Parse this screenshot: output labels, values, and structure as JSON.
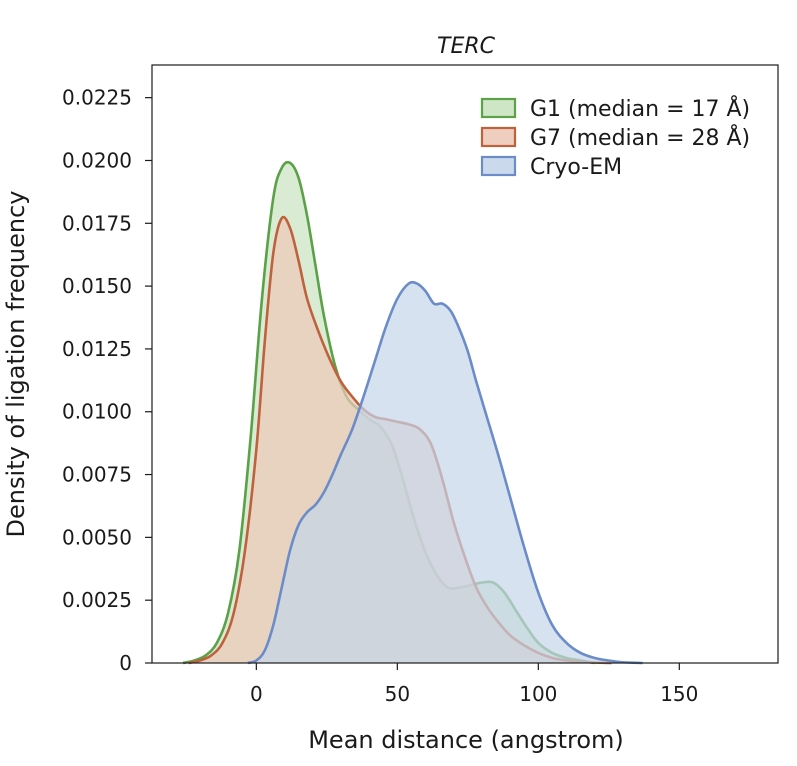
{
  "chart_data": {
    "type": "area",
    "title": "TERC",
    "xlabel": "Mean distance (angstrom)",
    "ylabel": "Density of ligation frequency",
    "xlim": [
      -37,
      185
    ],
    "ylim": [
      0,
      0.0238
    ],
    "xticks": [
      0,
      50,
      100,
      150
    ],
    "xtick_labels": [
      "0",
      "50",
      "100",
      "150"
    ],
    "yticks": [
      0,
      0.0025,
      0.005,
      0.0075,
      0.01,
      0.0125,
      0.015,
      0.0175,
      0.02,
      0.0225
    ],
    "ytick_labels": [
      "0",
      "0.0025",
      "0.0050",
      "0.0075",
      "0.0100",
      "0.0125",
      "0.0150",
      "0.0175",
      "0.0200",
      "0.0225"
    ],
    "grid": false,
    "legend_position": "top-right",
    "series": [
      {
        "name": "G1 (median = 17 Å)",
        "color": "#5aa147",
        "fill": "#c9e3c0",
        "x": [
          -26,
          -22,
          -18,
          -14,
          -10,
          -6,
          -2,
          2,
          6,
          9,
          12,
          15,
          18,
          21,
          24,
          28,
          32,
          36,
          40,
          44,
          48,
          52,
          56,
          60,
          64,
          68,
          72,
          76,
          80,
          84,
          88,
          92,
          96,
          100,
          105,
          110,
          115,
          120
        ],
        "y": [
          0.0,
          0.0001,
          0.0003,
          0.0008,
          0.002,
          0.0045,
          0.009,
          0.0145,
          0.0185,
          0.0197,
          0.0199,
          0.0193,
          0.0178,
          0.0158,
          0.0138,
          0.0118,
          0.0106,
          0.0101,
          0.0097,
          0.0094,
          0.0087,
          0.0073,
          0.0057,
          0.0044,
          0.0035,
          0.003,
          0.003,
          0.0031,
          0.0032,
          0.0032,
          0.0028,
          0.0021,
          0.0014,
          0.0008,
          0.0004,
          0.0002,
          0.0001,
          0.0
        ]
      },
      {
        "name": "G7 (median = 28 Å)",
        "color": "#c0613d",
        "fill": "#edc9b8",
        "x": [
          -24,
          -20,
          -16,
          -12,
          -8,
          -4,
          0,
          3,
          6,
          9,
          12,
          15,
          18,
          22,
          26,
          30,
          34,
          38,
          42,
          46,
          50,
          54,
          58,
          62,
          66,
          70,
          74,
          78,
          82,
          86,
          90,
          95,
          100,
          105,
          110,
          115,
          120,
          126
        ],
        "y": [
          0.0,
          0.0001,
          0.0003,
          0.0008,
          0.002,
          0.0045,
          0.0085,
          0.0128,
          0.0163,
          0.0177,
          0.0173,
          0.016,
          0.0145,
          0.0132,
          0.0121,
          0.0112,
          0.0106,
          0.0101,
          0.0098,
          0.0097,
          0.0096,
          0.0095,
          0.0093,
          0.0087,
          0.0073,
          0.0056,
          0.0042,
          0.003,
          0.0022,
          0.0016,
          0.0011,
          0.0007,
          0.0004,
          0.0002,
          0.0001,
          5e-05,
          2e-05,
          0.0
        ]
      },
      {
        "name": "Cryo-EM",
        "color": "#6c8cc8",
        "fill": "#c5d5ea",
        "x": [
          -3,
          0,
          3,
          6,
          9,
          12,
          15,
          18,
          21,
          24,
          27,
          30,
          34,
          38,
          42,
          46,
          50,
          54,
          57,
          60,
          63,
          66,
          69,
          72,
          75,
          78,
          82,
          86,
          90,
          95,
          100,
          105,
          110,
          115,
          120,
          125,
          130,
          137
        ],
        "y": [
          0.0,
          0.0001,
          0.0005,
          0.0015,
          0.003,
          0.0045,
          0.0055,
          0.006,
          0.0063,
          0.0068,
          0.0075,
          0.0083,
          0.0093,
          0.0106,
          0.012,
          0.0134,
          0.0145,
          0.0151,
          0.0151,
          0.0148,
          0.0143,
          0.0143,
          0.014,
          0.0133,
          0.0124,
          0.0112,
          0.0097,
          0.0082,
          0.0066,
          0.0046,
          0.0028,
          0.0015,
          0.0008,
          0.0004,
          0.0002,
          0.0001,
          3e-05,
          0.0
        ]
      }
    ]
  }
}
